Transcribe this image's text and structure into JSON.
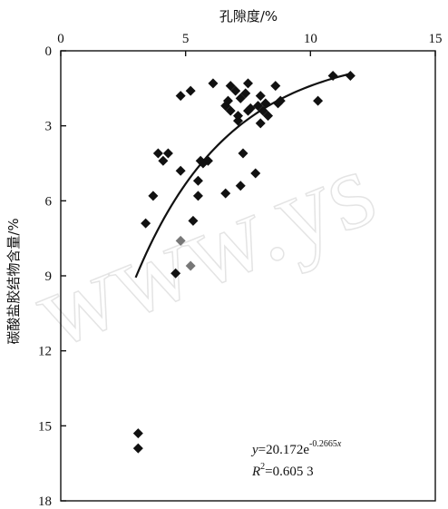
{
  "chart_data": {
    "type": "scatter",
    "xlabel": "孔隙度/%",
    "ylabel": "碳酸盐胶结物含量/%",
    "xlim": [
      0,
      15
    ],
    "ylim": [
      0,
      18
    ],
    "y_inverted": true,
    "x_axis_position": "top",
    "xticks": [
      "0",
      "5",
      "10",
      "15"
    ],
    "yticks": [
      "0",
      "3",
      "6",
      "9",
      "12",
      "15",
      "18"
    ],
    "grid": false,
    "marker_color": "#111111",
    "gray_marker_color": "#777777",
    "points": [
      {
        "x": 3.1,
        "y": 15.3
      },
      {
        "x": 3.1,
        "y": 15.9
      },
      {
        "x": 3.4,
        "y": 6.9
      },
      {
        "x": 3.7,
        "y": 5.8
      },
      {
        "x": 3.9,
        "y": 4.1
      },
      {
        "x": 4.1,
        "y": 4.4
      },
      {
        "x": 4.3,
        "y": 4.1
      },
      {
        "x": 4.6,
        "y": 8.9
      },
      {
        "x": 4.8,
        "y": 4.8
      },
      {
        "x": 4.8,
        "y": 1.8
      },
      {
        "x": 5.2,
        "y": 1.6
      },
      {
        "x": 5.3,
        "y": 6.8
      },
      {
        "x": 5.5,
        "y": 5.8
      },
      {
        "x": 5.5,
        "y": 5.2
      },
      {
        "x": 5.6,
        "y": 4.4
      },
      {
        "x": 5.7,
        "y": 4.5
      },
      {
        "x": 5.9,
        "y": 4.4
      },
      {
        "x": 6.1,
        "y": 1.3
      },
      {
        "x": 6.6,
        "y": 2.2
      },
      {
        "x": 6.6,
        "y": 5.7
      },
      {
        "x": 6.7,
        "y": 2.0
      },
      {
        "x": 6.8,
        "y": 1.4
      },
      {
        "x": 6.8,
        "y": 2.4
      },
      {
        "x": 7.0,
        "y": 1.6
      },
      {
        "x": 7.1,
        "y": 2.8
      },
      {
        "x": 7.1,
        "y": 2.6
      },
      {
        "x": 7.2,
        "y": 1.9
      },
      {
        "x": 7.2,
        "y": 5.4
      },
      {
        "x": 7.3,
        "y": 4.1
      },
      {
        "x": 7.4,
        "y": 1.7
      },
      {
        "x": 7.5,
        "y": 1.3
      },
      {
        "x": 7.5,
        "y": 2.4
      },
      {
        "x": 7.6,
        "y": 2.3
      },
      {
        "x": 7.8,
        "y": 4.9
      },
      {
        "x": 7.9,
        "y": 2.2
      },
      {
        "x": 8.0,
        "y": 2.9
      },
      {
        "x": 8.0,
        "y": 1.8
      },
      {
        "x": 8.1,
        "y": 2.4
      },
      {
        "x": 8.2,
        "y": 2.1
      },
      {
        "x": 8.3,
        "y": 2.6
      },
      {
        "x": 8.6,
        "y": 1.4
      },
      {
        "x": 8.7,
        "y": 2.1
      },
      {
        "x": 8.8,
        "y": 2.0
      },
      {
        "x": 10.3,
        "y": 2.0
      },
      {
        "x": 10.9,
        "y": 1.0
      },
      {
        "x": 11.6,
        "y": 1.0
      }
    ],
    "gray_points": [
      {
        "x": 4.8,
        "y": 7.6
      },
      {
        "x": 5.2,
        "y": 8.6
      }
    ],
    "fit": {
      "equation": "y=20.172e^(-0.2665x)",
      "a": 20.172,
      "b": -0.2665,
      "x_range": [
        3.0,
        11.6
      ],
      "line_color": "#111111"
    },
    "annotations": {
      "eq_y": "y",
      "eq_rhs": "=20.172e",
      "eq_exp_base": "-0.2665",
      "eq_exp_var": "x",
      "r2_r": "R",
      "r2_sup": "2",
      "r2_rhs": "=0.605 3"
    },
    "watermark": "www.ys"
  }
}
